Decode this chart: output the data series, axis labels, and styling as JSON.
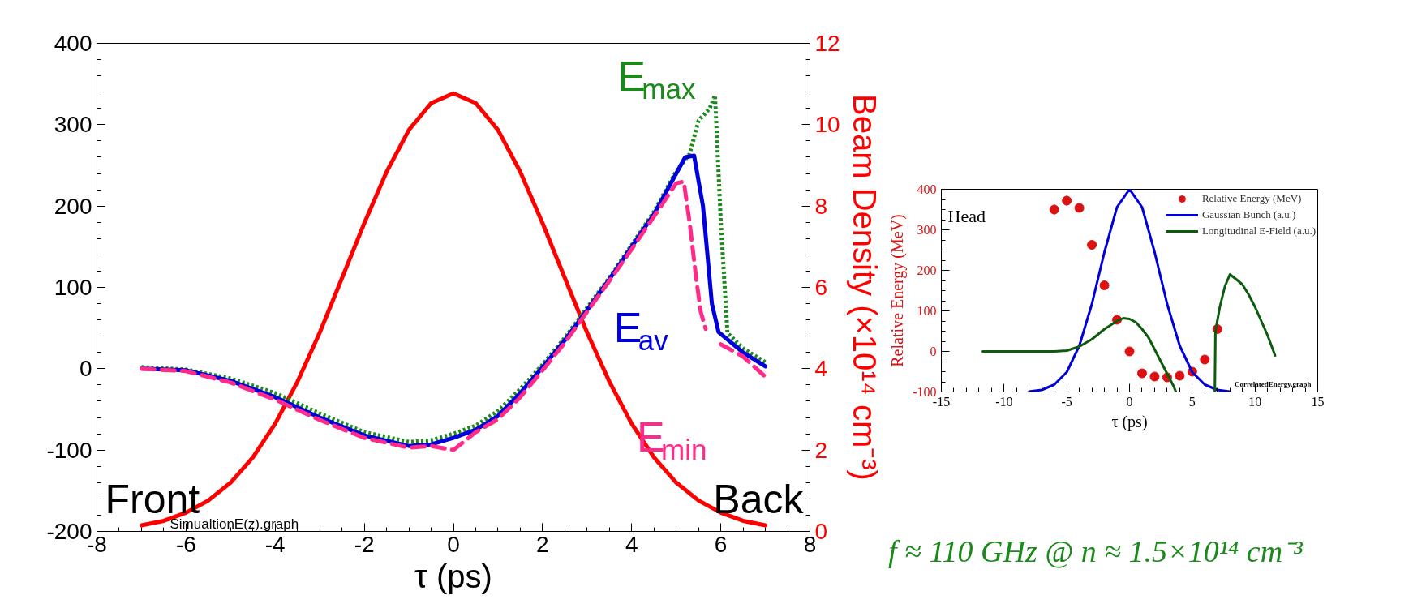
{
  "chart_data": [
    {
      "type": "line",
      "xlabel": "τ (ps)",
      "y2label": "Beam Density (×10¹⁴ cm⁻³)",
      "xlim": [
        -8,
        8
      ],
      "xticks": [
        -8,
        -6,
        -4,
        -2,
        0,
        2,
        4,
        6,
        8
      ],
      "ylim": [
        -200,
        400
      ],
      "yticks": [
        -200,
        -100,
        0,
        100,
        200,
        300,
        400
      ],
      "y2lim": [
        0,
        12
      ],
      "y2ticks": [
        0,
        2,
        4,
        6,
        8,
        10,
        12
      ],
      "grid": false,
      "legend": false,
      "series": [
        {
          "color": "#ff0000",
          "axis": "y2",
          "line_style": "solid",
          "x": [
            -7,
            -6.5,
            -6,
            -5.5,
            -5,
            -4.5,
            -4,
            -3.5,
            -3,
            -2.5,
            -2,
            -1.5,
            -1,
            -0.5,
            0,
            0.5,
            1,
            1.5,
            2,
            2.5,
            3,
            3.5,
            4,
            4.5,
            5,
            5.5,
            6,
            6.5,
            7
          ],
          "values": [
            0.15,
            0.26,
            0.46,
            0.76,
            1.2,
            1.82,
            2.65,
            3.68,
            4.89,
            6.23,
            7.58,
            8.84,
            9.87,
            10.53,
            10.77,
            10.53,
            9.87,
            8.84,
            7.58,
            6.23,
            4.89,
            3.68,
            2.65,
            1.82,
            1.2,
            0.76,
            0.46,
            0.26,
            0.15
          ]
        },
        {
          "color": "#1a8a1a",
          "line_style": "dotted",
          "x": [
            -7,
            -6,
            -5,
            -4,
            -3,
            -2,
            -1,
            -0.5,
            0,
            0.5,
            1,
            1.5,
            2,
            2.5,
            3,
            3.5,
            4,
            4.5,
            5,
            5.3,
            5.5,
            5.75,
            5.87,
            6.0,
            6.15,
            6.5,
            7
          ],
          "values": [
            2,
            -1,
            -12,
            -30,
            -55,
            -78,
            -90,
            -88,
            -80,
            -70,
            -52,
            -25,
            5,
            38,
            75,
            112,
            152,
            193,
            243,
            264,
            305,
            320,
            336,
            180,
            44,
            25,
            8
          ]
        },
        {
          "color": "#0000dd",
          "line_style": "solid",
          "x": [
            -7,
            -6,
            -5,
            -4,
            -3,
            -2,
            -1,
            -0.5,
            0,
            0.5,
            1,
            1.5,
            2,
            2.5,
            3,
            3.5,
            4,
            4.5,
            5,
            5.2,
            5.4,
            5.6,
            5.8,
            5.95,
            6.5,
            7
          ],
          "values": [
            0,
            -2,
            -15,
            -35,
            -60,
            -82,
            -95,
            -93,
            -85,
            -75,
            -58,
            -30,
            2,
            35,
            72,
            110,
            150,
            190,
            240,
            260,
            262,
            200,
            80,
            45,
            20,
            3
          ]
        },
        {
          "color": "#ff2a8a",
          "line_style": "dashed",
          "x": [
            -7,
            -6,
            -5,
            -4,
            -3,
            -2,
            -1,
            -0.5,
            0,
            0.5,
            1,
            1.5,
            2,
            2.5,
            3,
            3.5,
            4,
            4.5,
            5,
            5.17,
            5.3,
            5.45,
            5.55,
            5.66,
            5.8,
            6.0,
            6.5,
            7
          ],
          "values": [
            0,
            -3,
            -17,
            -38,
            -63,
            -85,
            -97,
            -95,
            -100,
            -78,
            -62,
            -35,
            -2,
            32,
            70,
            108,
            147,
            187,
            228,
            230,
            180,
            110,
            70,
            49,
            null,
            30,
            15,
            -10
          ]
        }
      ],
      "annotations": [
        {
          "text": "E$_{max}$",
          "x": 5.5,
          "y": 305
        },
        {
          "text": "E$_{av}$",
          "x": 5.6,
          "y": 200
        },
        {
          "text": "E$_{min}$",
          "x": 5.66,
          "y": 49
        },
        "Front",
        "Back",
        "SimualtionE(z).graph"
      ]
    },
    {
      "type": "line",
      "xlabel": "τ (ps)",
      "ylabel": "Relative Energy (MeV)",
      "xlim": [
        -15,
        15
      ],
      "xticks": [
        -15,
        -10,
        -5,
        0,
        5,
        10,
        15
      ],
      "ylim": [
        -100,
        400
      ],
      "yticks": [
        -100,
        0,
        100,
        200,
        300,
        400
      ],
      "grid": false,
      "legend": "top right",
      "series": [
        {
          "name": "Relative Energy (MeV)",
          "type": "scatter",
          "marker": "circle",
          "color": "#dd1111",
          "x": [
            -6,
            -5,
            -4,
            -3,
            -2,
            -1,
            0,
            1,
            2,
            3,
            4,
            5,
            6,
            7
          ],
          "values": [
            350,
            372,
            354,
            263,
            163,
            78,
            0,
            -54,
            -62,
            -64,
            -60,
            -50,
            -20,
            55
          ],
          "errors": [
            12,
            12,
            10,
            10,
            null,
            null,
            null,
            null,
            null,
            null,
            null,
            null,
            10,
            null
          ]
        },
        {
          "name": "Gaussian Bunch (a.u.)",
          "color": "#0000dd",
          "line_style": "solid",
          "x": [
            -8,
            -7,
            -6,
            -5,
            -4,
            -3,
            -2,
            -1,
            0,
            1,
            2,
            3,
            4,
            5,
            6,
            7,
            8
          ],
          "values": [
            -99,
            -95,
            -82,
            -51,
            14,
            117,
            245,
            356,
            400,
            356,
            245,
            117,
            14,
            -51,
            -82,
            -95,
            -99
          ]
        },
        {
          "name": "Longitudinal E-Field (a.u.)",
          "color": "#0d5c0d",
          "line_style": "solid",
          "x": [
            -11.7,
            -6,
            -5,
            -4,
            -3,
            -2,
            -1,
            -0.5,
            0,
            0.5,
            1,
            1.5,
            2,
            2.5,
            3,
            3.5,
            3.7,
            5,
            6.8,
            6.85,
            7.2,
            7.6,
            8,
            8.5,
            9,
            9.5,
            10,
            10.5,
            11,
            11.6
          ],
          "values": [
            0,
            0,
            2,
            12,
            30,
            55,
            75,
            82,
            80,
            72,
            55,
            35,
            5,
            -25,
            -55,
            -85,
            -100,
            null,
            -100,
            50,
            110,
            160,
            190,
            178,
            165,
            140,
            110,
            75,
            40,
            -10
          ]
        }
      ],
      "annotations": [
        "Head",
        "CorrelatedEnergy.graph",
        "f ≈ 110 GHz @ n ≈ 1.5×10¹⁴ cm⁻³"
      ]
    }
  ]
}
